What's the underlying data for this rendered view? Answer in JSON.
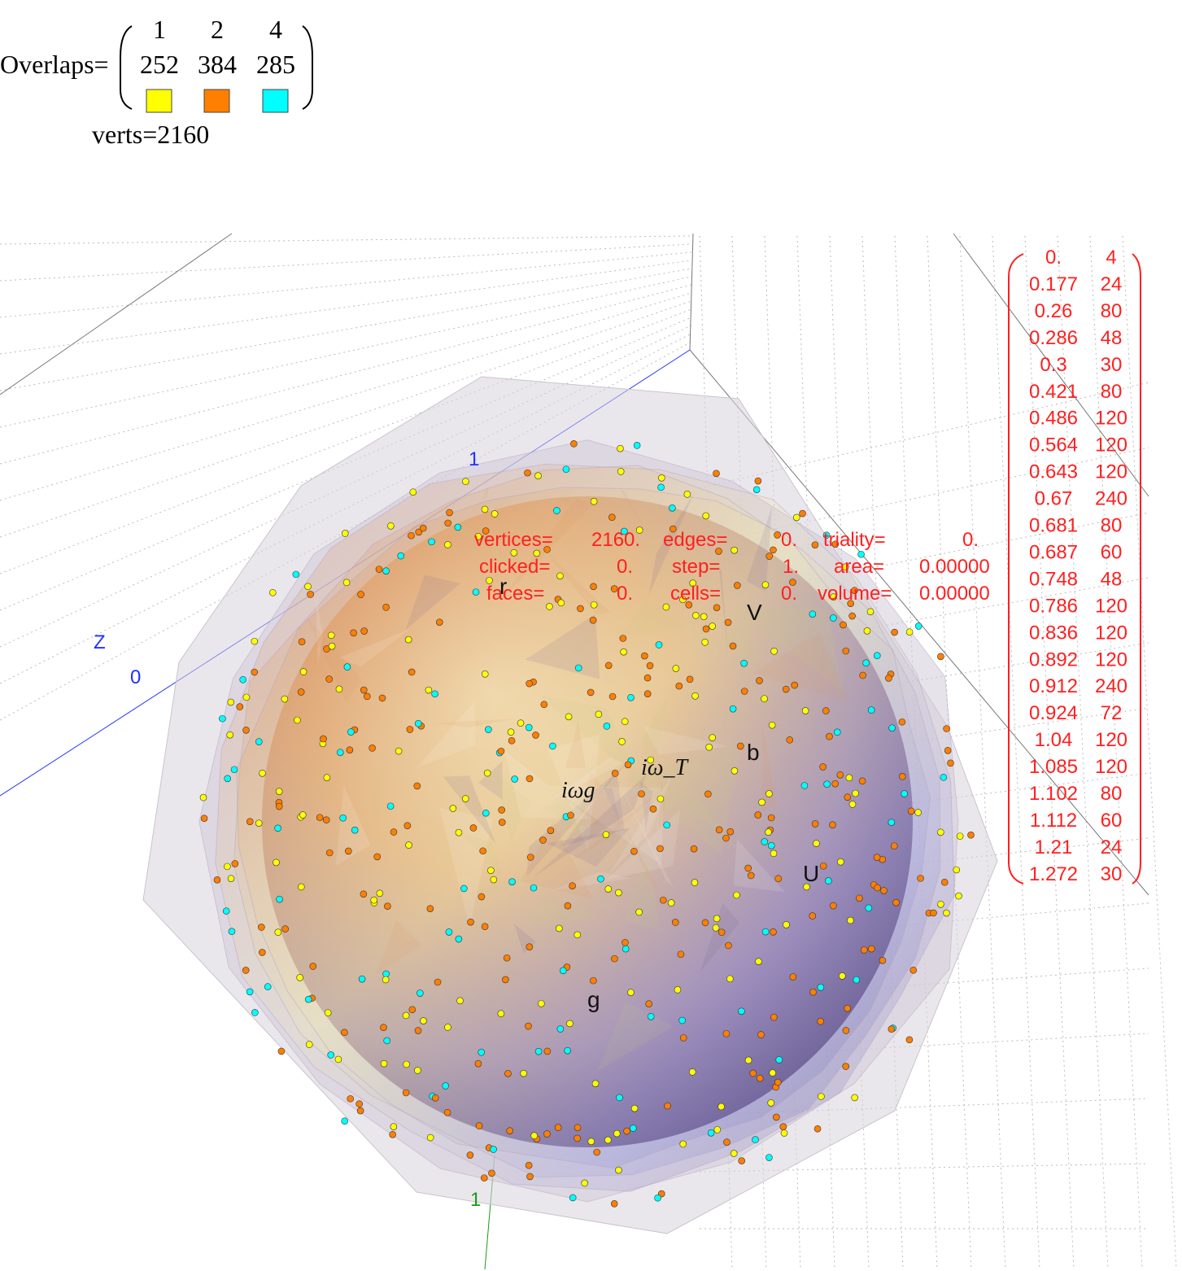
{
  "overlaps": {
    "label": "Overlaps=",
    "headers": [
      "1",
      "2",
      "4"
    ],
    "counts": [
      "252",
      "384",
      "285"
    ],
    "swatch_colors": [
      "#ffff00",
      "#ff7f00",
      "#00ffff"
    ]
  },
  "verts": "verts=2160",
  "info": {
    "rows": [
      [
        [
          "vertices=",
          "2160."
        ],
        [
          "edges=",
          "0."
        ],
        [
          "triality=",
          "0."
        ]
      ],
      [
        [
          "clicked=",
          "0."
        ],
        [
          "step=",
          "1."
        ],
        [
          "area=",
          "0.00000"
        ]
      ],
      [
        [
          "faces=",
          "0."
        ],
        [
          "cells=",
          "0."
        ],
        [
          "volume=",
          "0.00000"
        ]
      ]
    ]
  },
  "table": {
    "rows": [
      [
        "0.",
        "4"
      ],
      [
        "0.177",
        "24"
      ],
      [
        "0.26",
        "80"
      ],
      [
        "0.286",
        "48"
      ],
      [
        "0.3",
        "30"
      ],
      [
        "0.421",
        "80"
      ],
      [
        "0.486",
        "120"
      ],
      [
        "0.564",
        "120"
      ],
      [
        "0.643",
        "120"
      ],
      [
        "0.67",
        "240"
      ],
      [
        "0.681",
        "80"
      ],
      [
        "0.687",
        "60"
      ],
      [
        "0.748",
        "48"
      ],
      [
        "0.786",
        "120"
      ],
      [
        "0.836",
        "120"
      ],
      [
        "0.892",
        "120"
      ],
      [
        "0.912",
        "240"
      ],
      [
        "0.924",
        "72"
      ],
      [
        "1.04",
        "120"
      ],
      [
        "1.085",
        "120"
      ],
      [
        "1.102",
        "80"
      ],
      [
        "1.112",
        "60"
      ],
      [
        "1.21",
        "24"
      ],
      [
        "1.272",
        "30"
      ]
    ]
  },
  "scene_labels": {
    "r": "r",
    "V": "V",
    "b": "b",
    "U": "U",
    "g": "g",
    "omega_t": "iω_T",
    "omega_g": "iωg"
  },
  "axes": {
    "z": "Z",
    "z0": "0",
    "z1": "1",
    "y1": "1"
  }
}
